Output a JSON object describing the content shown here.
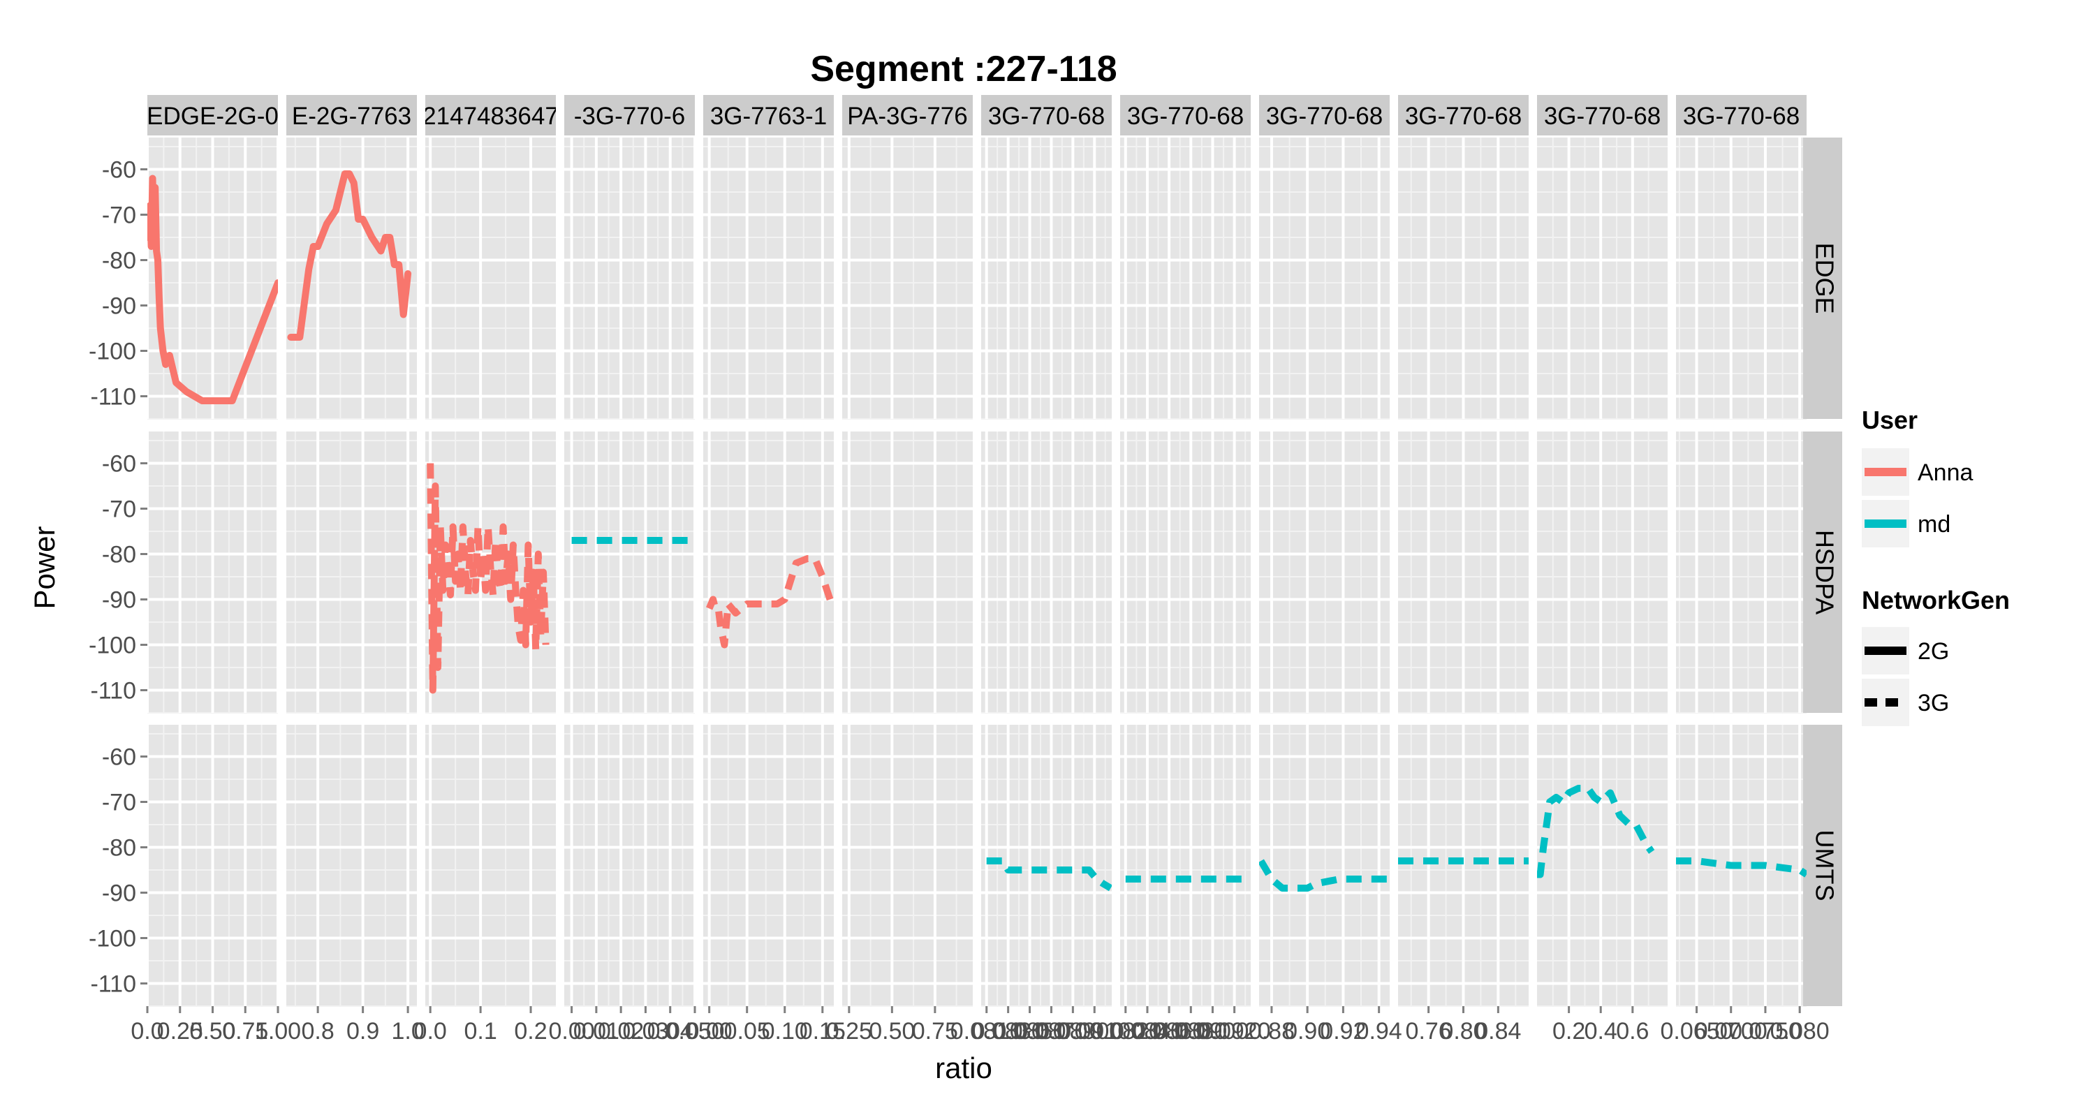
{
  "chart_data": {
    "type": "line",
    "title": "Segment :227-118",
    "xlabel": "ratio",
    "ylabel": "Power",
    "ylim": [
      -115,
      -53
    ],
    "y_ticks": [
      -60,
      -70,
      -80,
      -90,
      -100,
      -110
    ],
    "grid": true,
    "facet_columns": [
      {
        "label": "EDGE-2G-0",
        "xlim": [
          0.0,
          1.0
        ],
        "x_ticks": [
          0.0,
          0.25,
          0.5,
          0.75,
          1.0
        ],
        "x_tick_labels": [
          "0.0",
          "0.25",
          "0.50",
          "0.75",
          "1.00"
        ]
      },
      {
        "label": "E-2G-7763",
        "xlim": [
          0.73,
          1.02
        ],
        "x_ticks": [
          0.8,
          0.9,
          1.0
        ],
        "x_tick_labels": [
          "0.8",
          "0.9",
          "1.0"
        ]
      },
      {
        "label": "2147483647",
        "xlim": [
          -0.01,
          0.25
        ],
        "x_ticks": [
          0.0,
          0.1,
          0.2
        ],
        "x_tick_labels": [
          "0.0",
          "0.1",
          "0.2"
        ]
      },
      {
        "label": "-3G-770-6",
        "xlim": [
          -0.003,
          0.05
        ],
        "x_ticks": [
          0.0,
          0.01,
          0.02,
          0.03,
          0.04,
          0.05
        ],
        "x_tick_labels": [
          "0.00",
          "0.01",
          "0.02",
          "0.03",
          "0.04",
          "0.050"
        ]
      },
      {
        "label": "3G-7763-1",
        "xlim": [
          -0.008,
          0.165
        ],
        "x_ticks": [
          0.0,
          0.05,
          0.1,
          0.15
        ],
        "x_tick_labels": [
          "0.00",
          "0.05",
          "0.10",
          "0.15"
        ]
      },
      {
        "label": "PA-3G-776",
        "xlim": [
          0.21,
          0.97
        ],
        "x_ticks": [
          0.25,
          0.5,
          0.75
        ],
        "x_tick_labels": [
          "0.25",
          "0.50",
          "0.75"
        ]
      },
      {
        "label": "3G-770-68",
        "xlim": [
          0.0805,
          0.0926
        ],
        "x_ticks": [
          0.081,
          0.083,
          0.085,
          0.087,
          0.089,
          0.091
        ],
        "x_tick_labels": [
          "0.0810",
          "0.0830",
          "0.0850",
          "0.0870",
          "0.0890",
          "0.0910"
        ]
      },
      {
        "label": "3G-770-68",
        "xlim": [
          0.0815,
          0.0935
        ],
        "x_ticks": [
          0.082,
          0.084,
          0.086,
          0.088,
          0.09,
          0.092
        ],
        "x_tick_labels": [
          "0.0820",
          "0.0840",
          "0.0860",
          "0.0880",
          "0.0900",
          "0.0920"
        ]
      },
      {
        "label": "3G-770-68",
        "xlim": [
          0.873,
          0.946
        ],
        "x_ticks": [
          0.88,
          0.9,
          0.92,
          0.94
        ],
        "x_tick_labels": [
          "0.88",
          "0.90",
          "0.92",
          "0.94"
        ]
      },
      {
        "label": "3G-770-68",
        "xlim": [
          0.725,
          0.875
        ],
        "x_ticks": [
          0.76,
          0.8,
          0.84
        ],
        "x_tick_labels": [
          "0.76",
          "0.80",
          "0.84"
        ]
      },
      {
        "label": "3G-770-68",
        "xlim": [
          0.0,
          0.82
        ],
        "x_ticks": [
          0.2,
          0.4,
          0.6
        ],
        "x_tick_labels": [
          "0.2",
          "0.4",
          "0.6"
        ]
      },
      {
        "label": "3G-770-68",
        "xlim": [
          0.062,
          0.081
        ],
        "x_ticks": [
          0.065,
          0.07,
          0.075,
          0.08
        ],
        "x_tick_labels": [
          "0.0650",
          "0.0700",
          "0.0750",
          "0.080"
        ]
      }
    ],
    "facet_rows": [
      "EDGE",
      "HSDPA",
      "UMTS"
    ],
    "legend": {
      "placement": "right",
      "user_title": "User",
      "users": [
        {
          "name": "Anna",
          "color": "#F8766D"
        },
        {
          "name": "md",
          "color": "#00BFC4"
        }
      ],
      "network_title": "NetworkGen",
      "networks": [
        {
          "name": "2G",
          "dash": "solid"
        },
        {
          "name": "3G",
          "dash": "dashed"
        }
      ]
    },
    "series": [
      {
        "user": "Anna",
        "network": "2G",
        "panel": [
          0,
          0
        ],
        "x": [
          0.0,
          0.02,
          0.03,
          0.04,
          0.05,
          0.06,
          0.07,
          0.08,
          0.09,
          0.1,
          0.12,
          0.14,
          0.17,
          0.22,
          0.3,
          0.42,
          0.55,
          0.65,
          1.0
        ],
        "y": [
          -75,
          -68,
          -77,
          -62,
          -75,
          -64,
          -78,
          -80,
          -88,
          -95,
          -100,
          -103,
          -101,
          -107,
          -109,
          -111,
          -111,
          -111,
          -85
        ]
      },
      {
        "user": "Anna",
        "network": "2G",
        "panel": [
          1,
          0
        ],
        "x": [
          0.74,
          0.76,
          0.78,
          0.79,
          0.8,
          0.82,
          0.84,
          0.86,
          0.87,
          0.88,
          0.89,
          0.9,
          0.92,
          0.94,
          0.95,
          0.96,
          0.97,
          0.98,
          0.99,
          1.0
        ],
        "y": [
          -97,
          -97,
          -82,
          -77,
          -77,
          -72,
          -69,
          -61,
          -61,
          -63,
          -71,
          -71,
          -75,
          -78,
          -75,
          -75,
          -81,
          -81,
          -92,
          -83
        ]
      },
      {
        "user": "Anna",
        "network": "3G",
        "panel": [
          2,
          1
        ],
        "x": [
          0.0,
          0.005,
          0.01,
          0.015,
          0.02,
          0.025,
          0.03,
          0.035,
          0.04,
          0.045,
          0.05,
          0.055,
          0.06,
          0.065,
          0.07,
          0.075,
          0.08,
          0.085,
          0.09,
          0.095,
          0.1,
          0.105,
          0.11,
          0.115,
          0.12,
          0.125,
          0.13,
          0.135,
          0.14,
          0.145,
          0.15,
          0.155,
          0.16,
          0.165,
          0.17,
          0.175,
          0.18,
          0.185,
          0.19,
          0.195,
          0.2,
          0.205,
          0.21,
          0.215,
          0.22,
          0.225,
          0.23
        ],
        "y": [
          -60,
          -110,
          -65,
          -105,
          -74,
          -88,
          -78,
          -84,
          -89,
          -74,
          -86,
          -80,
          -88,
          -74,
          -84,
          -89,
          -77,
          -84,
          -88,
          -74,
          -86,
          -80,
          -88,
          -74,
          -83,
          -89,
          -77,
          -85,
          -88,
          -74,
          -86,
          -80,
          -90,
          -78,
          -88,
          -96,
          -99,
          -88,
          -100,
          -78,
          -95,
          -84,
          -101,
          -80,
          -98,
          -84,
          -100
        ]
      },
      {
        "user": "md",
        "network": "3G",
        "panel": [
          3,
          1
        ],
        "x": [
          0.0,
          0.05
        ],
        "y": [
          -77,
          -77
        ]
      },
      {
        "user": "Anna",
        "network": "3G",
        "panel": [
          4,
          1
        ],
        "x": [
          0.0,
          0.005,
          0.008,
          0.012,
          0.015,
          0.02,
          0.025,
          0.035,
          0.05,
          0.07,
          0.08,
          0.09,
          0.1,
          0.115,
          0.13,
          0.14,
          0.15,
          0.16
        ],
        "y": [
          -92,
          -90,
          -92,
          -92,
          -96,
          -100,
          -91,
          -93,
          -91,
          -91,
          -91,
          -91,
          -90,
          -82,
          -81,
          -81,
          -85,
          -90
        ]
      },
      {
        "user": "md",
        "network": "3G",
        "panel": [
          6,
          2
        ],
        "x": [
          0.081,
          0.0825,
          0.083,
          0.085,
          0.0865,
          0.0875,
          0.0885,
          0.0895,
          0.0905,
          0.0912,
          0.0918,
          0.0925
        ],
        "y": [
          -83,
          -83,
          -85,
          -85,
          -85,
          -85,
          -85,
          -85,
          -85,
          -87,
          -88,
          -89
        ]
      },
      {
        "user": "md",
        "network": "3G",
        "panel": [
          7,
          2
        ],
        "x": [
          0.082,
          0.093
        ],
        "y": [
          -87,
          -87
        ]
      },
      {
        "user": "md",
        "network": "3G",
        "panel": [
          8,
          2
        ],
        "x": [
          0.874,
          0.88,
          0.886,
          0.9,
          0.905,
          0.918,
          0.93,
          0.945
        ],
        "y": [
          -83,
          -87,
          -89,
          -89,
          -88,
          -87,
          -87,
          -87
        ]
      },
      {
        "user": "md",
        "network": "3G",
        "panel": [
          9,
          2
        ],
        "x": [
          0.725,
          0.75,
          0.8,
          0.85,
          0.875
        ],
        "y": [
          -83,
          -83,
          -83,
          -83,
          -83
        ]
      },
      {
        "user": "md",
        "network": "3G",
        "panel": [
          10,
          2
        ],
        "x": [
          0.0,
          0.02,
          0.04,
          0.06,
          0.08,
          0.12,
          0.16,
          0.2,
          0.26,
          0.32,
          0.36,
          0.4,
          0.46,
          0.52,
          0.58,
          0.62,
          0.68,
          0.72
        ],
        "y": [
          -86,
          -86,
          -80,
          -75,
          -70,
          -69,
          -70,
          -68,
          -67,
          -67,
          -69,
          -70,
          -68,
          -73,
          -75,
          -75,
          -79,
          -81
        ]
      },
      {
        "user": "md",
        "network": "3G",
        "panel": [
          11,
          2
        ],
        "x": [
          0.062,
          0.065,
          0.07,
          0.075,
          0.08,
          0.081
        ],
        "y": [
          -83,
          -83,
          -84,
          -84,
          -85,
          -86
        ]
      }
    ]
  }
}
